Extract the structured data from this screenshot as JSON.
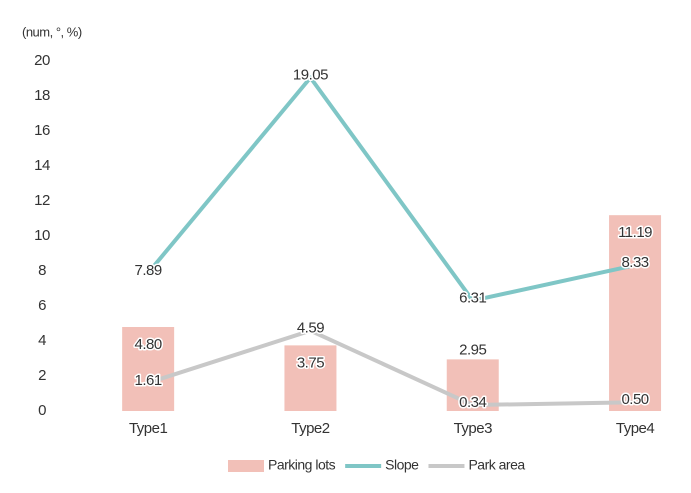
{
  "chart_data": {
    "type": "bar-line",
    "y_label": "(num, °, %)",
    "categories": [
      "Type1",
      "Type2",
      "Type3",
      "Type4"
    ],
    "ylim": [
      0,
      20
    ],
    "yticks": [
      0,
      2,
      4,
      6,
      8,
      10,
      12,
      14,
      16,
      18,
      20
    ],
    "series": [
      {
        "name": "Parking lots",
        "type": "bar",
        "color": "#f2c0b8",
        "values": [
          4.8,
          3.75,
          2.95,
          11.19
        ],
        "value_labels": [
          "4.80",
          "3.75",
          "2.95",
          "11.19"
        ]
      },
      {
        "name": "Slope",
        "type": "line",
        "color": "#7fc6c6",
        "values": [
          7.89,
          19.05,
          6.31,
          8.33
        ]
      },
      {
        "name": "Park area",
        "type": "line",
        "color": "#c8c8c8",
        "values": [
          1.61,
          4.59,
          0.34,
          0.5
        ],
        "value_labels": [
          "1.61",
          "4.59",
          "0.34",
          "0.50"
        ]
      }
    ]
  }
}
